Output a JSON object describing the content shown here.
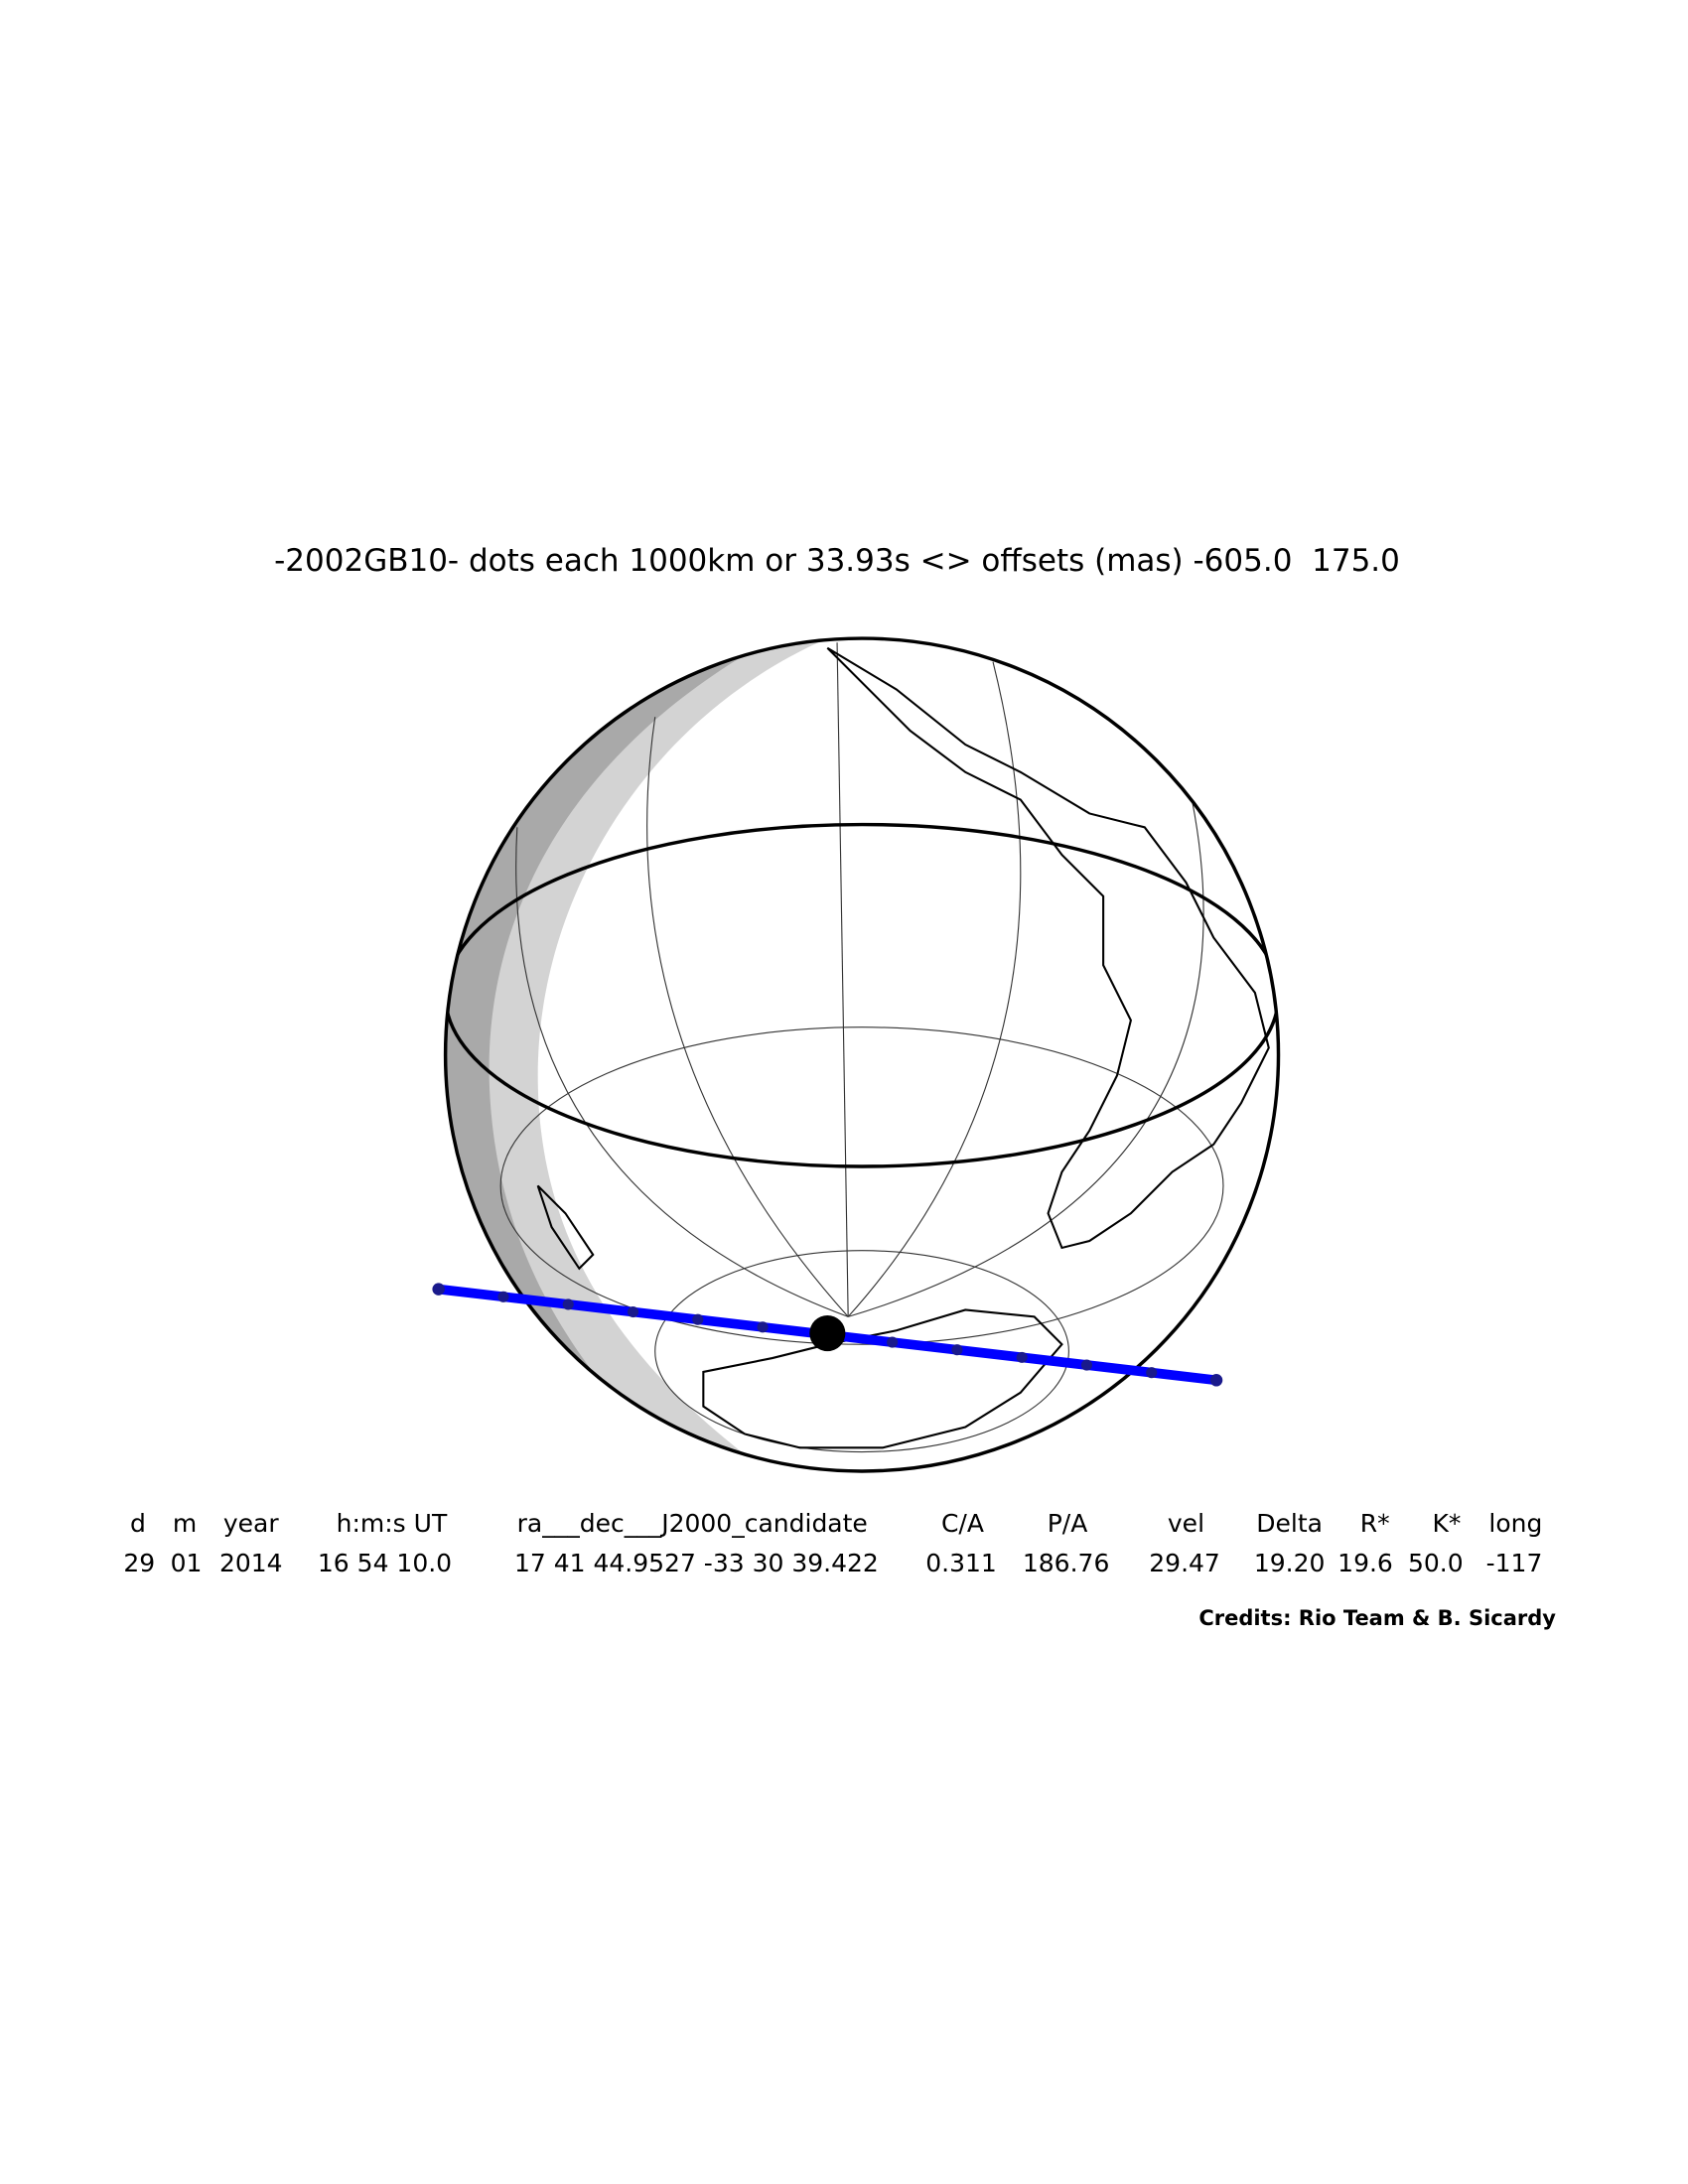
{
  "title": "-2002GB10- dots each 1000km or 33.93s <> offsets (mas) -605.0  175.0",
  "table": {
    "header": [
      "d",
      "m",
      "year",
      "h:m:s UT",
      "ra___dec___J2000_candidate",
      "C/A",
      "P/A",
      "vel",
      "Delta",
      "R*",
      "K*",
      "long"
    ],
    "row": [
      "29",
      "01",
      "2014",
      "16 54 10.0",
      "17 41 44.9527 -33 30 39.422",
      "0.311",
      "186.76",
      "29.47",
      "19.20",
      "19.6",
      "50.0",
      "-117"
    ]
  },
  "credits": "Credits: Rio Team & B. Sicardy"
}
